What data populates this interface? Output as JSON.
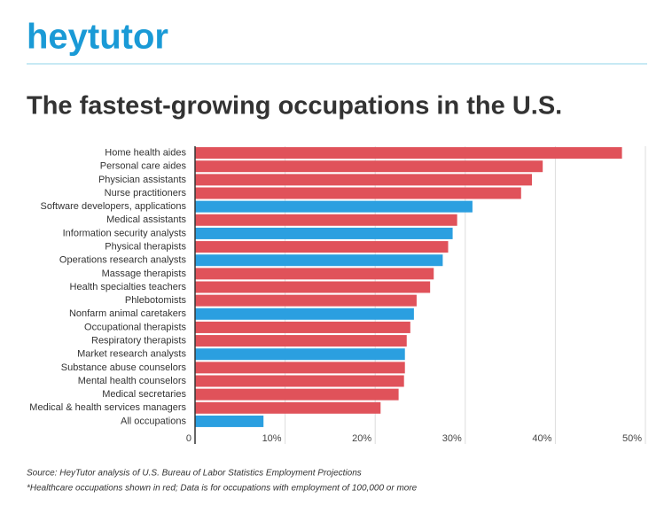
{
  "logo": "heytutor",
  "chart_data": {
    "type": "bar",
    "orientation": "horizontal",
    "title": "The fastest-growing occupations in the U.S.",
    "categories": [
      "Home health aides",
      "Personal care aides",
      "Physician assistants",
      "Nurse practitioners",
      "Software developers, applications",
      "Medical assistants",
      "Information security analysts",
      "Physical therapists",
      "Operations research analysts",
      "Massage therapists",
      "Health specialties teachers",
      "Phlebotomists",
      "Nonfarm animal caretakers",
      "Occupational therapists",
      "Respiratory therapists",
      "Market research analysts",
      "Substance abuse counselors",
      "Mental health counselors",
      "Medical secretaries",
      "Medical & health services managers",
      "All occupations"
    ],
    "values": [
      47.4,
      38.6,
      37.4,
      36.2,
      30.8,
      29.1,
      28.6,
      28.1,
      27.5,
      26.5,
      26.1,
      24.6,
      24.3,
      23.9,
      23.5,
      23.3,
      23.3,
      23.2,
      22.6,
      20.6,
      7.6
    ],
    "colors": [
      "#e0525a",
      "#e0525a",
      "#e0525a",
      "#e0525a",
      "#2b9fe0",
      "#e0525a",
      "#2b9fe0",
      "#e0525a",
      "#2b9fe0",
      "#e0525a",
      "#e0525a",
      "#e0525a",
      "#2b9fe0",
      "#e0525a",
      "#e0525a",
      "#2b9fe0",
      "#e0525a",
      "#e0525a",
      "#e0525a",
      "#e0525a",
      "#2b9fe0"
    ],
    "xlim": [
      0,
      50
    ],
    "xticks": [
      0,
      {
        "value": 10,
        "label": "10%"
      },
      {
        "value": 20,
        "label": "20%"
      },
      {
        "value": 30,
        "label": "30%"
      },
      {
        "value": 40,
        "label": "40%"
      },
      {
        "value": 50,
        "label": "50%"
      }
    ],
    "grid": true,
    "source": "Source: HeyTutor analysis of U.S. Bureau of Labor Statistics Employment Projections",
    "note": "*Healthcare occupations shown in red; Data is for occupations with employment of 100,000 or more"
  }
}
